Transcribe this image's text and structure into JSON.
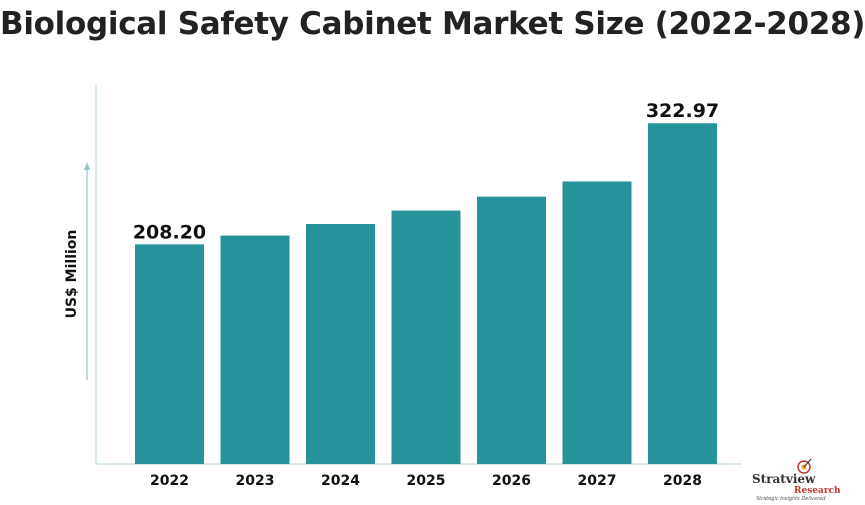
{
  "chart_data": {
    "type": "bar",
    "title": "Biological Safety Cabinet Market Size (2022-2028)",
    "ylabel": "US$ Million",
    "xlabel": "",
    "categories": [
      "2022",
      "2023",
      "2024",
      "2025",
      "2026",
      "2027",
      "2028"
    ],
    "values": [
      208.2,
      216.5,
      227.5,
      240.2,
      253.4,
      267.8,
      322.97
    ],
    "data_labels": [
      "208.20",
      "",
      "",
      "",
      "",
      "",
      "322.97"
    ],
    "ylim": [
      0,
      345
    ],
    "grid": false,
    "legend": "none",
    "bar_color": "#26939a"
  },
  "brand": {
    "name": "Stratview",
    "sub": "Research",
    "tagline": "Strategic Insights Delivered"
  }
}
